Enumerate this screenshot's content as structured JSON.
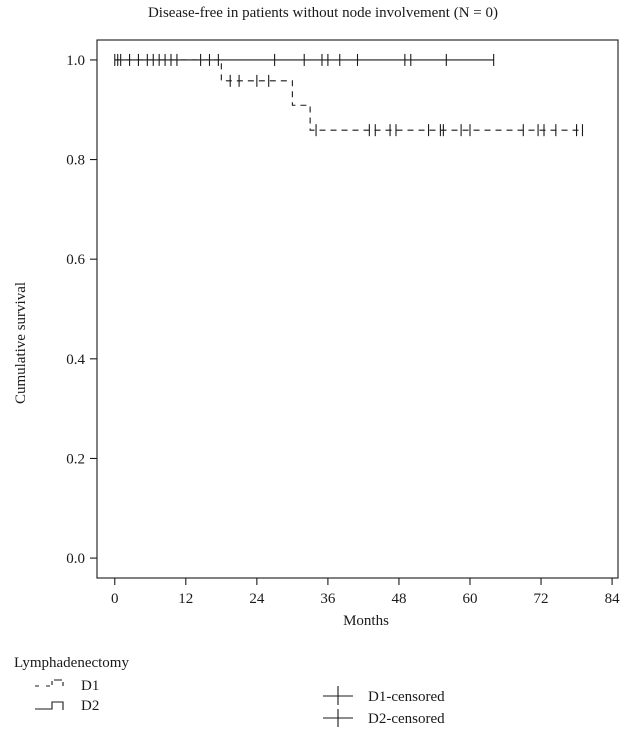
{
  "chart_data": {
    "type": "line",
    "title": "Disease-free in patients without node involvement (N = 0)",
    "xlabel": "Months",
    "ylabel": "Cumulative survival",
    "xlim": [
      -3,
      85
    ],
    "ylim": [
      -0.04,
      1.04
    ],
    "x_ticks": [
      0,
      12,
      24,
      36,
      48,
      60,
      72,
      84
    ],
    "y_ticks": [
      0.0,
      0.2,
      0.4,
      0.6,
      0.8,
      1.0
    ],
    "legend": {
      "title": "Lymphadenectomy",
      "entries": [
        "D1",
        "D2",
        "D1-censored",
        "D2-censored"
      ],
      "placement": "below"
    },
    "series": [
      {
        "name": "D1",
        "style": "dashed",
        "steps": [
          {
            "x": 0,
            "y": 1.0
          },
          {
            "x": 18,
            "y": 0.958
          },
          {
            "x": 30,
            "y": 0.909
          },
          {
            "x": 33,
            "y": 0.859
          },
          {
            "x": 79,
            "y": 0.859
          }
        ],
        "censored_x": [
          19.5,
          21,
          24,
          26,
          34,
          43,
          44,
          46.5,
          47.5,
          53,
          55,
          55.5,
          58.5,
          60,
          69,
          71.5,
          72.5,
          74.5,
          78,
          79
        ]
      },
      {
        "name": "D2",
        "style": "solid",
        "steps": [
          {
            "x": 0,
            "y": 1.0
          },
          {
            "x": 64,
            "y": 1.0
          }
        ],
        "censored_x": [
          0,
          0.5,
          1,
          2.5,
          4,
          5.5,
          6.5,
          7.5,
          8.5,
          9.5,
          10.5,
          14.5,
          16,
          17.5,
          27,
          32,
          35,
          36,
          38,
          41,
          49,
          50,
          56,
          64
        ]
      }
    ]
  }
}
